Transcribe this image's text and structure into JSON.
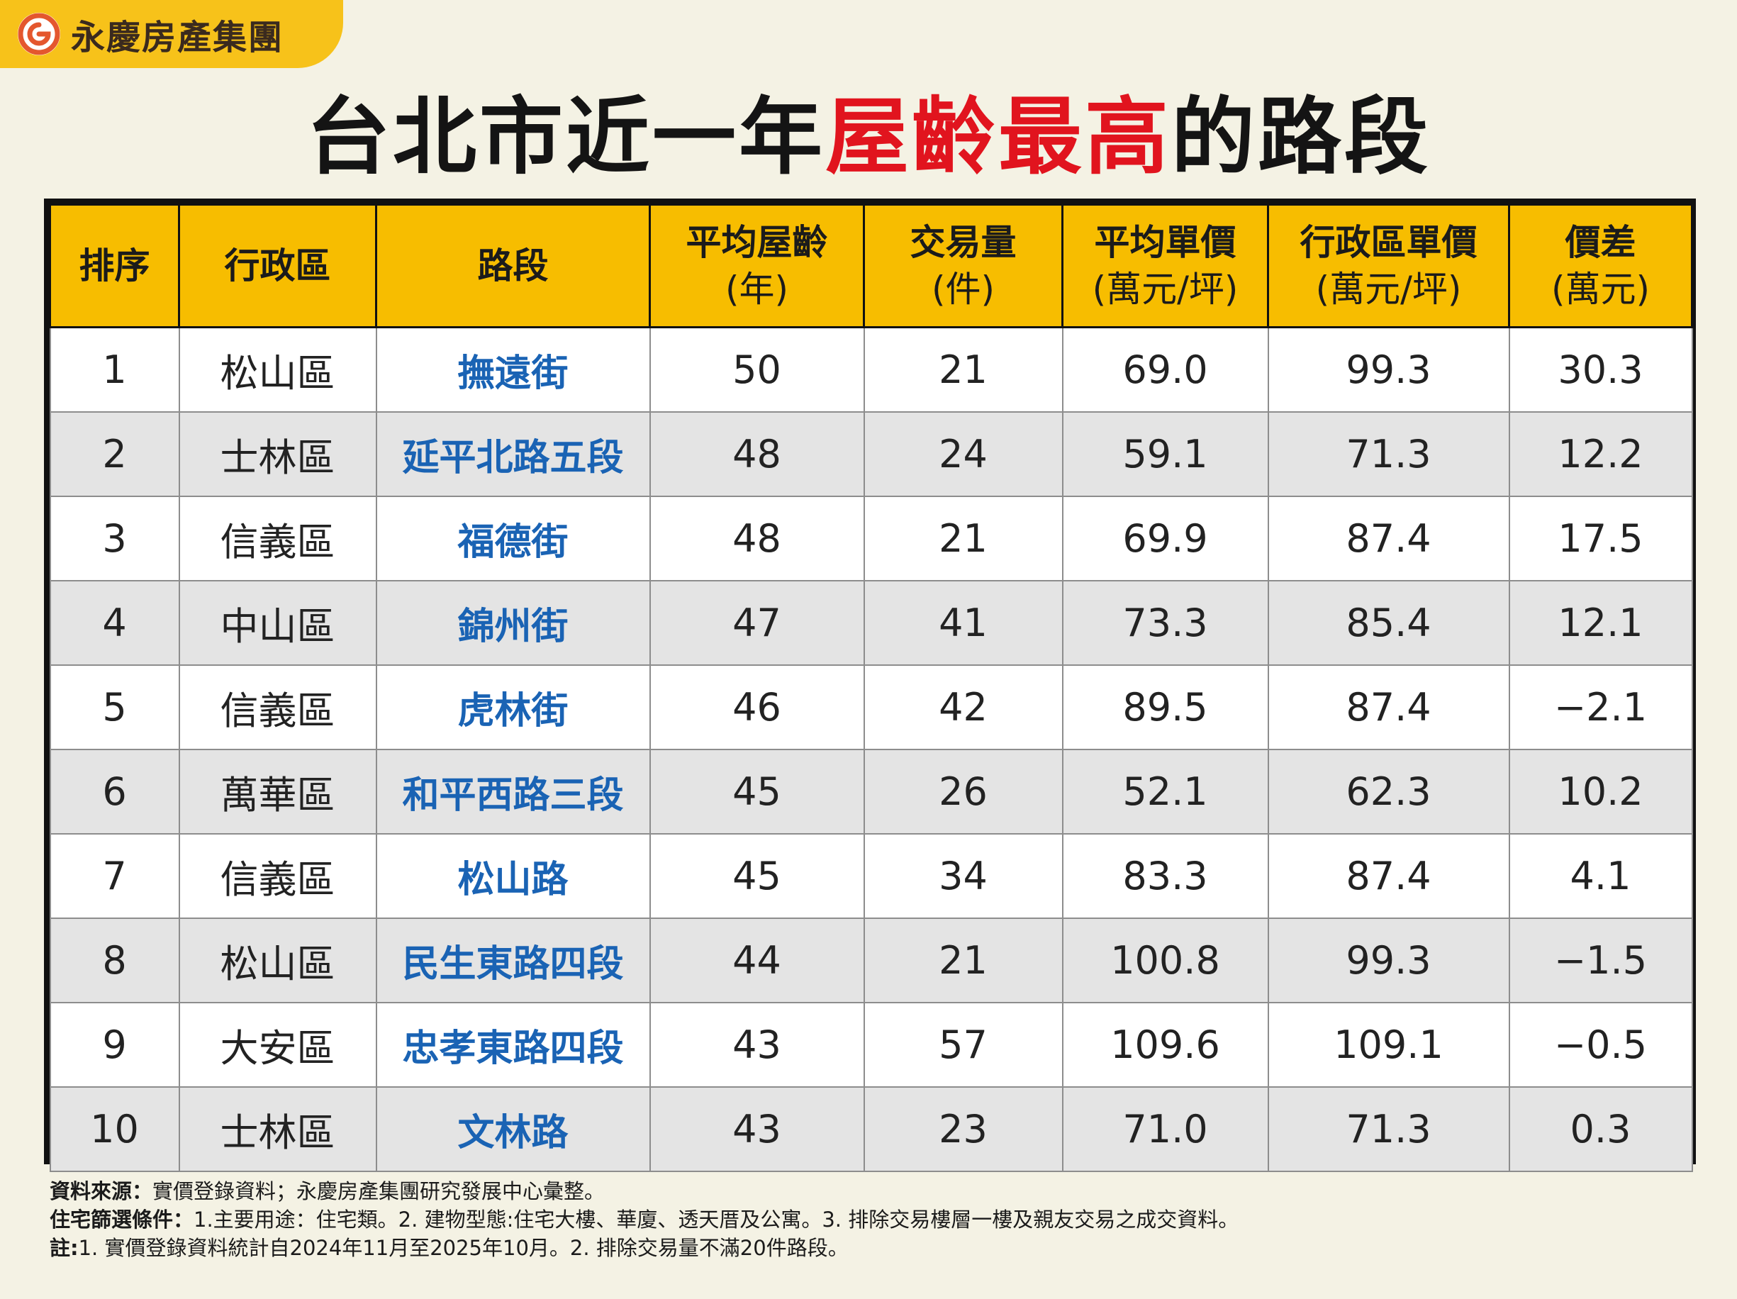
{
  "brand": {
    "name": "永慶房產集團",
    "logo_icon": "yungching-logo-icon",
    "accent": "#f7c21a"
  },
  "title": {
    "part1": "台北市近一年",
    "highlight": "屋齡最高",
    "part2": "的路段",
    "highlight_color": "#e1141e"
  },
  "table": {
    "header_color": "#f7bd00",
    "road_color": "#1a63b4",
    "headers": [
      {
        "main": "排序",
        "sub": ""
      },
      {
        "main": "行政區",
        "sub": ""
      },
      {
        "main": "路段",
        "sub": ""
      },
      {
        "main": "平均屋齡",
        "sub": "(年)"
      },
      {
        "main": "交易量",
        "sub": "(件)"
      },
      {
        "main": "平均單價",
        "sub": "(萬元/坪)"
      },
      {
        "main": "行政區單價",
        "sub": "(萬元/坪)"
      },
      {
        "main": "價差",
        "sub": "(萬元)"
      }
    ],
    "rows": [
      [
        "1",
        "松山區",
        "撫遠街",
        "50",
        "21",
        "69.0",
        "99.3",
        "30.3"
      ],
      [
        "2",
        "士林區",
        "延平北路五段",
        "48",
        "24",
        "59.1",
        "71.3",
        "12.2"
      ],
      [
        "3",
        "信義區",
        "福德街",
        "48",
        "21",
        "69.9",
        "87.4",
        "17.5"
      ],
      [
        "4",
        "中山區",
        "錦州街",
        "47",
        "41",
        "73.3",
        "85.4",
        "12.1"
      ],
      [
        "5",
        "信義區",
        "虎林街",
        "46",
        "42",
        "89.5",
        "87.4",
        "−2.1"
      ],
      [
        "6",
        "萬華區",
        "和平西路三段",
        "45",
        "26",
        "52.1",
        "62.3",
        "10.2"
      ],
      [
        "7",
        "信義區",
        "松山路",
        "45",
        "34",
        "83.3",
        "87.4",
        "4.1"
      ],
      [
        "8",
        "松山區",
        "民生東路四段",
        "44",
        "21",
        "100.8",
        "99.3",
        "−1.5"
      ],
      [
        "9",
        "大安區",
        "忠孝東路四段",
        "43",
        "57",
        "109.6",
        "109.1",
        "−0.5"
      ],
      [
        "10",
        "士林區",
        "文林路",
        "43",
        "23",
        "71.0",
        "71.3",
        "0.3"
      ]
    ]
  },
  "notes": {
    "source_label": "資料來源：",
    "source_text": "實價登錄資料；永慶房產集團研究發展中心彙整。",
    "filter_label": "住宅篩選條件：",
    "filter_text": "1.主要用途：住宅類。2. 建物型態:住宅大樓、華廈、透天厝及公寓。3. 排除交易樓層一樓及親友交易之成交資料。",
    "remark_label": "註:",
    "remark_text": "1. 實價登錄資料統計自2024年11月至2025年10月。2. 排除交易量不滿20件路段。"
  }
}
